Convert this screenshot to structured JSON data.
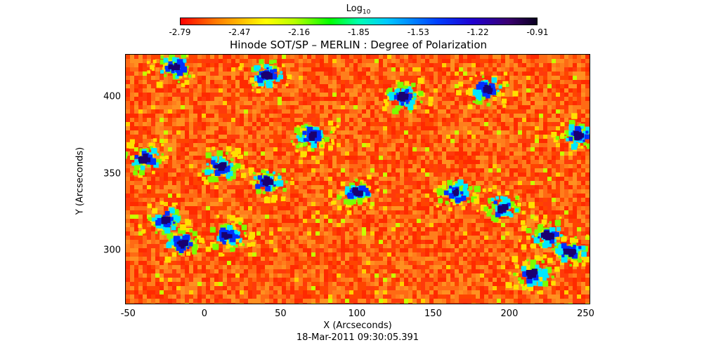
{
  "colorbar": {
    "title": "Log",
    "title_sub": "10",
    "ticks": [
      "-2.79",
      "-2.47",
      "-2.16",
      "-1.85",
      "-1.53",
      "-1.22",
      "-0.91"
    ],
    "range": [
      -2.79,
      -0.91
    ],
    "colormap": "red-yellow-green-cyan-blue-violet-black"
  },
  "chart_data": {
    "type": "heatmap",
    "title": "Hinode SOT/SP – MERLIN : Degree of Polarization",
    "xlabel": "X (Arcseconds)",
    "ylabel": "Y (Arcseconds)",
    "xlim": [
      -52,
      253
    ],
    "ylim": [
      265,
      428
    ],
    "xticks": [
      -50,
      0,
      50,
      100,
      150,
      200,
      250
    ],
    "yticks": [
      300,
      350,
      400
    ],
    "value_range": [
      -2.79,
      -0.91
    ],
    "value_label": "Log10",
    "high_polarization_regions": [
      {
        "x": 15,
        "y": 310
      },
      {
        "x": -15,
        "y": 305
      },
      {
        "x": 40,
        "y": 345
      },
      {
        "x": 10,
        "y": 355
      },
      {
        "x": -25,
        "y": 320
      },
      {
        "x": 100,
        "y": 338
      },
      {
        "x": 70,
        "y": 375
      },
      {
        "x": 165,
        "y": 338
      },
      {
        "x": 195,
        "y": 328
      },
      {
        "x": 225,
        "y": 310
      },
      {
        "x": 240,
        "y": 300
      },
      {
        "x": 215,
        "y": 285
      },
      {
        "x": 185,
        "y": 405
      },
      {
        "x": -20,
        "y": 420
      },
      {
        "x": 40,
        "y": 415
      },
      {
        "x": 245,
        "y": 375
      },
      {
        "x": 130,
        "y": 400
      },
      {
        "x": -40,
        "y": 360
      }
    ]
  },
  "timestamp": "18-Mar-2011 09:30:05.391"
}
